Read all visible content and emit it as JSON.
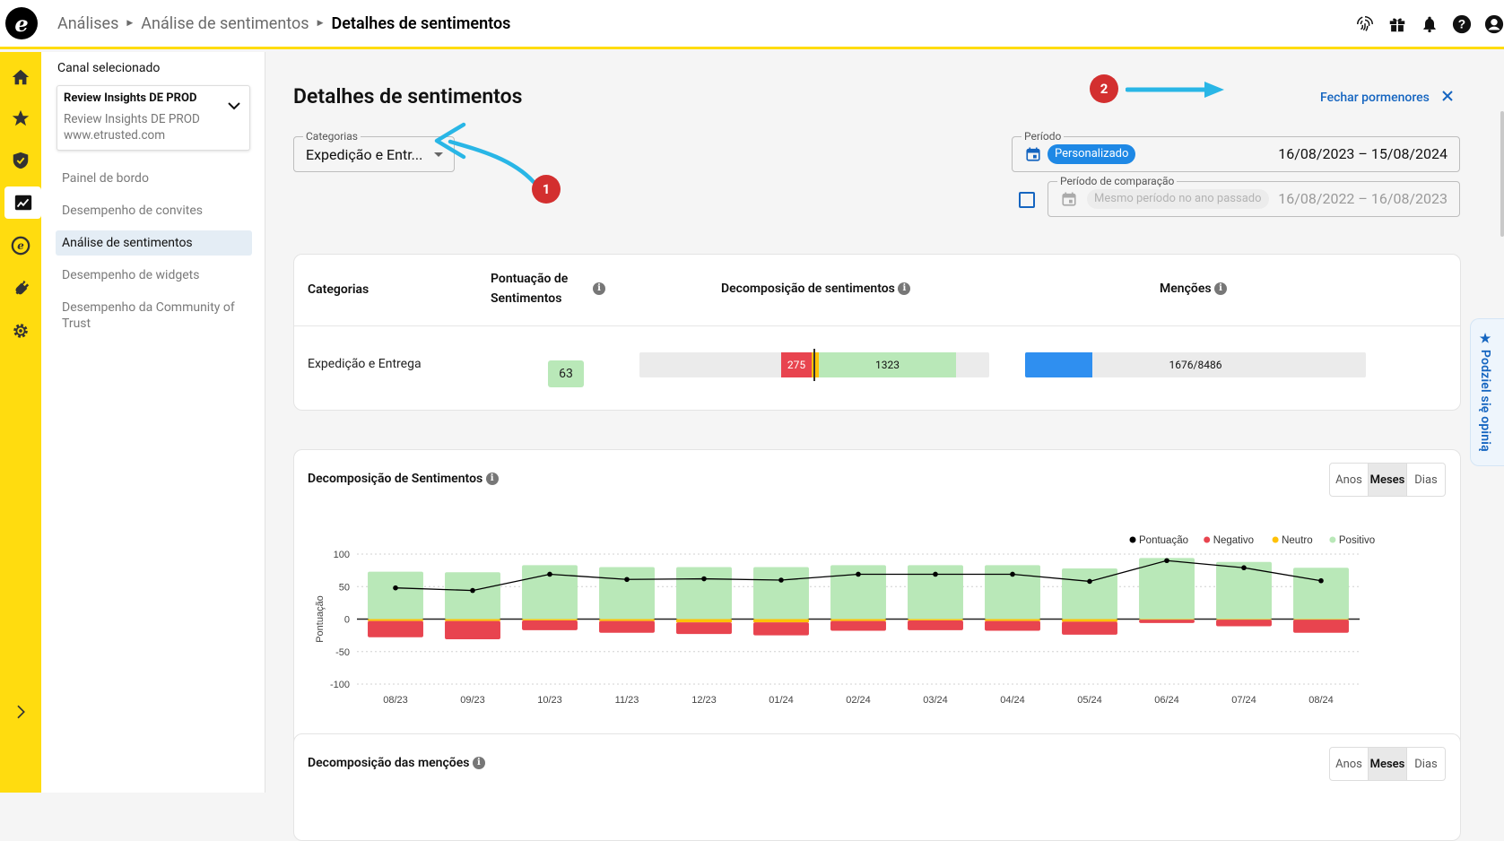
{
  "app": {
    "breadcrumbs": [
      "Análises",
      "Análise de sentimentos",
      "Detalhes de sentimentos"
    ]
  },
  "sidebar": {
    "channel_label": "Canal selecionado",
    "channel": {
      "name": "Review Insights DE PROD",
      "sub_name": "Review Insights DE PROD",
      "url": "www.etrusted.com"
    },
    "items": [
      {
        "label": "Painel de bordo",
        "active": false
      },
      {
        "label": "Desempenho de convites",
        "active": false
      },
      {
        "label": "Análise de sentimentos",
        "active": true
      },
      {
        "label": "Desempenho de widgets",
        "active": false
      },
      {
        "label": "Desempenho da Community of Trust",
        "active": false
      }
    ]
  },
  "page": {
    "title": "Detalhes de sentimentos",
    "close_label": "Fechar pormenores",
    "categories_legend": "Categorias",
    "categories_value": "Expedição e Entr...",
    "period_legend": "Período",
    "period_pill": "Personalizado",
    "period_range": "16/08/2023 – 15/08/2024",
    "comparison_legend": "Período de comparação",
    "comparison_pill": "Mesmo período no ano passado",
    "comparison_range": "16/08/2022 – 16/08/2023",
    "annotations": [
      "1",
      "2"
    ]
  },
  "table": {
    "headers": {
      "categories": "Categorias",
      "score_line1": "Pontuação de",
      "score_line2": "Sentimentos",
      "breakdown": "Decomposição de sentimentos",
      "mentions": "Menções"
    },
    "row": {
      "category": "Expedição e Entrega",
      "score": "63",
      "negative": "275",
      "neutral_share": 0.012,
      "positive": "1323",
      "mentions": "1676/8486",
      "mentions_fraction": 0.1975
    }
  },
  "sentiment_card": {
    "title": "Decomposição de Sentimentos",
    "toggle": [
      "Anos",
      "Meses",
      "Dias"
    ],
    "toggle_selected": "Meses"
  },
  "mentions_card": {
    "title": "Decomposição das menções",
    "toggle": [
      "Anos",
      "Meses",
      "Dias"
    ],
    "toggle_selected": "Meses"
  },
  "feedback_tab": "★ Podziel się opinią",
  "chart_data": {
    "type": "bar",
    "ylabel": "Pontuação",
    "ylim": [
      -100,
      100
    ],
    "yticks": [
      "100",
      "50",
      "0",
      "-50",
      "-100"
    ],
    "legend": [
      "Pontuação",
      "Negativo",
      "Neutro",
      "Positivo"
    ],
    "legend_position": "top-right",
    "categories": [
      "08/23",
      "09/23",
      "10/23",
      "11/23",
      "12/23",
      "01/24",
      "02/24",
      "03/24",
      "04/24",
      "05/24",
      "06/24",
      "07/24",
      "08/24"
    ],
    "series": [
      {
        "name": "Positivo",
        "color": "#b9e8b8",
        "values": [
          73,
          72,
          83,
          80,
          80,
          80,
          83,
          83,
          83,
          78,
          94,
          88,
          79
        ]
      },
      {
        "name": "Neutro",
        "color": "#ffc107",
        "values": [
          3,
          3,
          2,
          3,
          5,
          5,
          3,
          2,
          3,
          4,
          1,
          1,
          1
        ]
      },
      {
        "name": "Negativo",
        "color": "#e8444f",
        "values": [
          -25,
          -28,
          -15,
          -18,
          -18,
          -20,
          -15,
          -15,
          -15,
          -20,
          -5,
          -10,
          -20
        ]
      },
      {
        "name": "Pontuação",
        "color": "#000000",
        "values": [
          48,
          44,
          69,
          61,
          62,
          60,
          69,
          69,
          69,
          58,
          90,
          79,
          59
        ]
      }
    ],
    "grid": true
  }
}
